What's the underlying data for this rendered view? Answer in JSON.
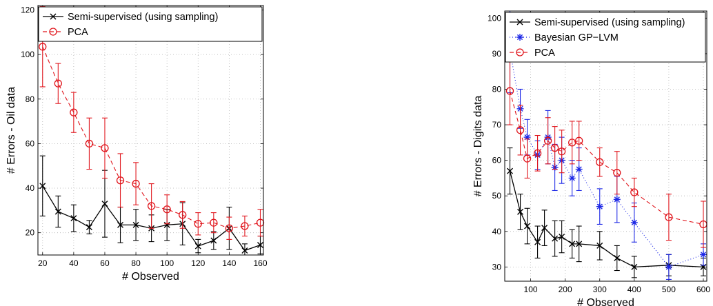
{
  "chart_data": [
    {
      "type": "line",
      "xlabel": "# Observed",
      "ylabel": "# Errors  -  Oil data",
      "xlim": [
        17,
        162
      ],
      "ylim": [
        10,
        122
      ],
      "xticks": [
        20,
        40,
        60,
        80,
        100,
        120,
        140,
        160
      ],
      "yticks": [
        20,
        40,
        60,
        80,
        100,
        120
      ],
      "grid": true,
      "legend_position": "top-right",
      "series": [
        {
          "name": "Semi-supervised (using sampling)",
          "color": "#000000",
          "marker": "x",
          "line": "solid",
          "x": [
            20,
            30,
            40,
            50,
            60,
            70,
            80,
            90,
            100,
            110,
            120,
            130,
            140,
            150,
            160
          ],
          "y": [
            41,
            29.5,
            26.5,
            22.5,
            33,
            23.5,
            23.5,
            22,
            23.5,
            24,
            14,
            16.5,
            22,
            12,
            14.5
          ],
          "err": [
            13.5,
            7,
            6,
            3,
            15,
            8,
            7,
            6,
            7,
            9.5,
            3,
            4,
            9.5,
            3,
            4
          ]
        },
        {
          "name": "PCA",
          "color": "#e0141b",
          "marker": "o",
          "line": "dashed",
          "x": [
            20,
            30,
            40,
            50,
            60,
            70,
            80,
            90,
            100,
            110,
            120,
            130,
            140,
            150,
            160
          ],
          "y": [
            103.5,
            87,
            74,
            60,
            58,
            43.5,
            42,
            32,
            30.5,
            28,
            24,
            24.5,
            22,
            23,
            24.5
          ],
          "err": [
            18,
            9,
            9,
            11.5,
            13.5,
            12,
            9.5,
            10,
            6.5,
            6,
            5,
            4.5,
            5,
            4.5,
            6
          ]
        }
      ]
    },
    {
      "type": "line",
      "xlabel": "# Observed",
      "ylabel": "# Errors  -  Digits data",
      "xlim": [
        25,
        610
      ],
      "ylim": [
        26,
        102
      ],
      "xticks": [
        100,
        200,
        300,
        400,
        500,
        600
      ],
      "yticks": [
        30,
        40,
        50,
        60,
        70,
        80,
        90,
        100
      ],
      "grid": true,
      "legend_position": "top-right",
      "series": [
        {
          "name": "Semi-supervised (using sampling)",
          "color": "#000000",
          "marker": "x",
          "line": "solid",
          "x": [
            40,
            70,
            90,
            120,
            140,
            170,
            190,
            220,
            240,
            300,
            350,
            400,
            500,
            600
          ],
          "y": [
            57,
            45.5,
            41.5,
            37,
            41,
            38,
            38.5,
            36.5,
            36.5,
            36,
            32.5,
            30,
            30.5,
            30
          ],
          "err": [
            6.5,
            5,
            5,
            4.5,
            5,
            5,
            4.5,
            4,
            5,
            4,
            3.5,
            3,
            3,
            2.5
          ]
        },
        {
          "name": "Bayesian GP−LVM",
          "color": "#1c27e6",
          "marker": "*",
          "line": "dotted",
          "x": [
            40,
            70,
            90,
            120,
            150,
            170,
            190,
            220,
            240,
            300,
            350,
            400,
            500,
            600
          ],
          "y": [
            91,
            74.5,
            66.5,
            61.5,
            66.5,
            58,
            60,
            55,
            57.5,
            47,
            49,
            42.5,
            30,
            33.5
          ],
          "err": [
            12,
            5.5,
            5,
            4,
            7.5,
            6.5,
            6.5,
            5,
            6,
            5,
            6.5,
            5.5,
            3.5,
            3
          ]
        },
        {
          "name": "PCA",
          "color": "#e0141b",
          "marker": "o",
          "line": "dashed",
          "x": [
            40,
            70,
            90,
            120,
            150,
            170,
            190,
            220,
            240,
            300,
            350,
            400,
            500,
            600
          ],
          "y": [
            79.5,
            68.5,
            60.5,
            62,
            65.5,
            63.5,
            62.5,
            65,
            65.5,
            59.5,
            56.5,
            51,
            44,
            42
          ],
          "err": [
            9.5,
            7,
            5.5,
            5,
            6.5,
            6,
            6,
            6,
            5.5,
            4,
            6,
            4,
            6.5,
            6.5
          ]
        }
      ]
    }
  ]
}
